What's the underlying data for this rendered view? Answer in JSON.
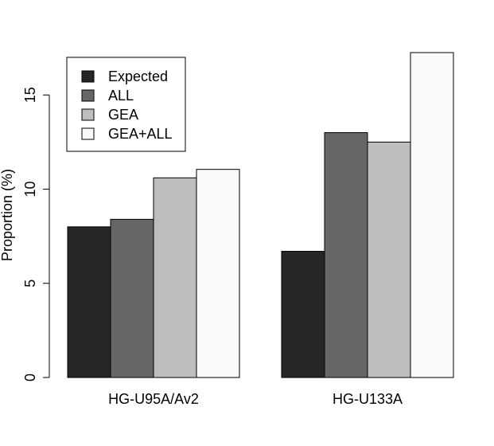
{
  "chart_data": {
    "type": "bar",
    "categories": [
      "HG-U95A/Av2",
      "HG-U133A"
    ],
    "series": [
      {
        "name": "Expected",
        "color": "#262626",
        "values": [
          8.0,
          6.7
        ]
      },
      {
        "name": "ALL",
        "color": "#666666",
        "values": [
          8.4,
          13.0
        ]
      },
      {
        "name": "GEA",
        "color": "#bebebe",
        "values": [
          10.6,
          12.5
        ]
      },
      {
        "name": "GEA+ALL",
        "color": "#f9f9f9",
        "values": [
          11.05,
          17.25
        ]
      }
    ],
    "ylabel": "Proportion (%)",
    "yticks": [
      0,
      5,
      10,
      15
    ],
    "ylim": [
      0,
      17.25
    ],
    "grid": false,
    "legend_position": "top-left"
  }
}
